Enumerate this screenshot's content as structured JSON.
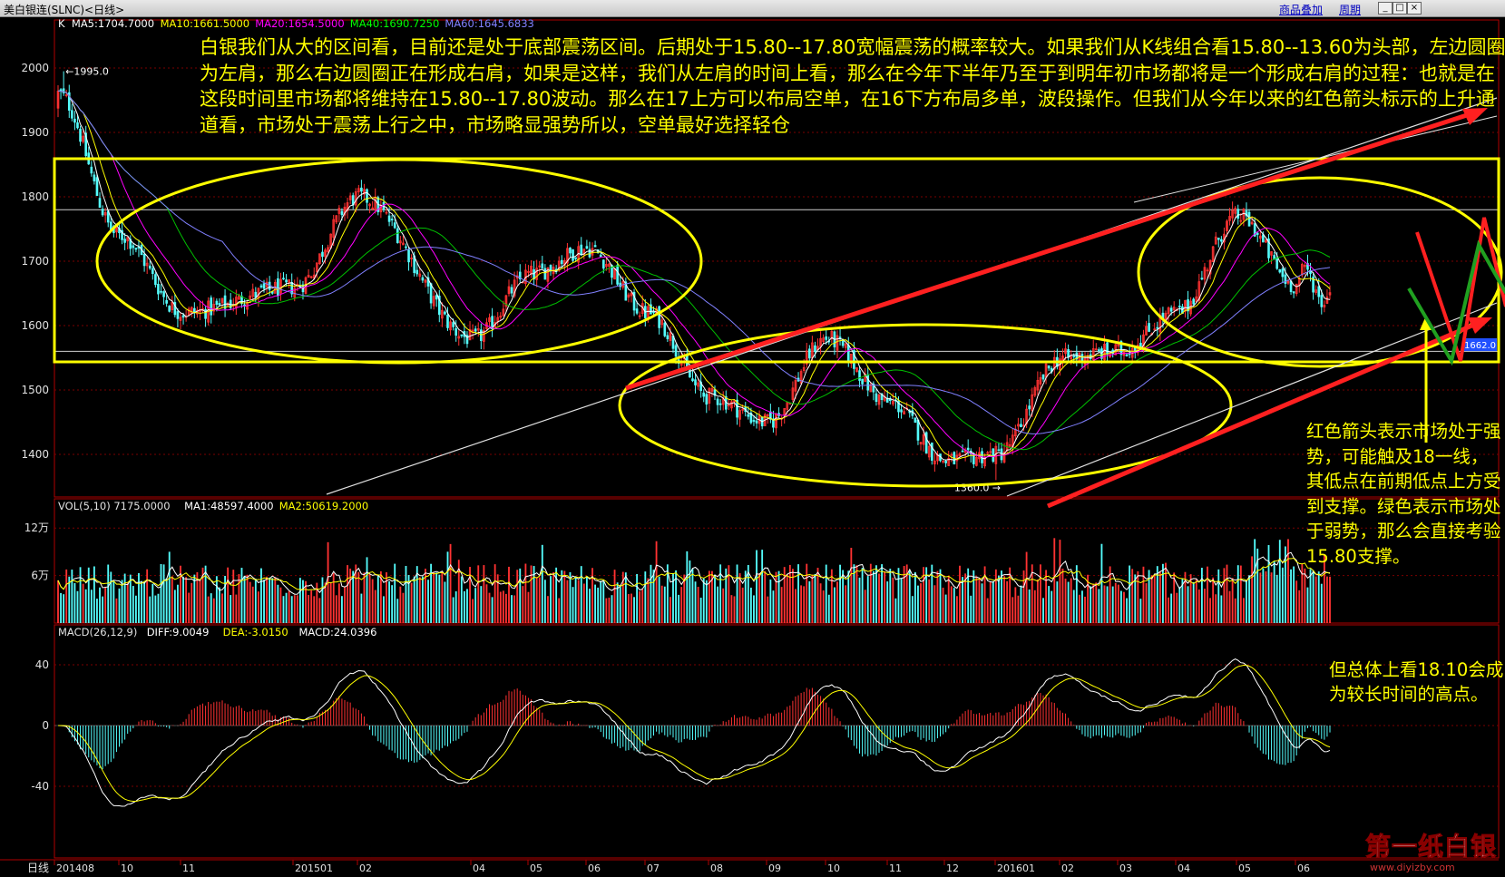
{
  "window": {
    "title": "美白银连(SLNC)<日线>",
    "buttons": [
      "商品叠加",
      "周期"
    ],
    "window_controls": [
      "minimize-icon",
      "maximize-icon",
      "close-icon"
    ]
  },
  "price_panel": {
    "indicator_label": "K",
    "ma_labels": [
      {
        "text": "MA5:1704.7000",
        "color": "#ffffff"
      },
      {
        "text": "MA10:1661.5000",
        "color": "#ffff00"
      },
      {
        "text": "MA20:1654.5000",
        "color": "#ff00ff"
      },
      {
        "text": "MA40:1690.7250",
        "color": "#00ff00"
      },
      {
        "text": "MA60:1645.6833",
        "color": "#8080ff"
      }
    ],
    "y_ticks": [
      "2000",
      "1900",
      "1800",
      "1700",
      "1600",
      "1500",
      "1400"
    ],
    "high_marker": "←1995.0",
    "low_marker": "1360.0 →",
    "last_price": "1662.0"
  },
  "volume_panel": {
    "label": "VOL(5,10) 7175.0000",
    "ma_labels": [
      {
        "text": "MA1:48597.4000",
        "color": "#ffffff"
      },
      {
        "text": "MA2:50619.2000",
        "color": "#ffff00"
      }
    ],
    "y_ticks": [
      "12万",
      "6万"
    ]
  },
  "macd_panel": {
    "label": "MACD(26,12,9)",
    "values": [
      {
        "text": "DIFF:9.0049",
        "color": "#ffffff"
      },
      {
        "text": "DEA:-3.0150",
        "color": "#ffff00"
      },
      {
        "text": "MACD:24.0396",
        "color": "#ffffff"
      }
    ],
    "y_ticks": [
      "40",
      "0",
      "-40"
    ]
  },
  "x_axis": {
    "period": "日线",
    "ticks": [
      "201408",
      "10",
      "11",
      "201501",
      "02",
      "04",
      "05",
      "06",
      "07",
      "08",
      "09",
      "10",
      "11",
      "12",
      "201601",
      "02",
      "03",
      "04",
      "05",
      "06"
    ]
  },
  "annotations": {
    "main": "白银我们从大的区间看，目前还是处于底部震荡区间。后期处于15.80--17.80宽幅震荡的概率较大。如果我们从K线组合看15.80--13.60为头部，左边圆圈为左肩，那么右边圆圈正在形成右肩，如果是这样，我们从左肩的时间上看，那么在今年下半年乃至于到明年初市场都将是一个形成右肩的过程：也就是在这段时间里市场都将维持在15.80--17.80波动。那么在17上方可以布局空单，在16下方布局多单，波段操作。但我们从今年以来的红色箭头标示的上升通道看，市场处于震荡上行之中，市场略显强势所以，空单最好选择轻仓",
    "right1": "红色箭头表示市场处于强势，可能触及18一线，其低点在前期低点上方受到支撑。绿色表示市场处于弱势，那么会直接考验15.80支撑。",
    "right2": "但总体上看18.10会成为较长时间的高点。"
  },
  "watermark": {
    "brand": "第一纸白银",
    "url": "www.diyizby.com"
  },
  "chart_data": {
    "type": "line",
    "title": "美白银连(SLNC)<日线>",
    "x": [
      "201408",
      "10",
      "11",
      "201501",
      "02",
      "04",
      "05",
      "06",
      "07",
      "08",
      "09",
      "10",
      "11",
      "12",
      "201601",
      "02",
      "03",
      "04",
      "05",
      "06"
    ],
    "price_anchors": {
      "x": [
        "201408",
        "10",
        "11",
        "201501",
        "02",
        "04",
        "05",
        "06",
        "07",
        "08",
        "09",
        "10",
        "11",
        "12",
        "201601",
        "02",
        "03",
        "04",
        "05",
        "06"
      ],
      "close": [
        1960,
        1740,
        1620,
        1660,
        1800,
        1580,
        1680,
        1720,
        1620,
        1490,
        1450,
        1580,
        1480,
        1390,
        1400,
        1550,
        1560,
        1620,
        1770,
        1662
      ]
    },
    "price_high": 1995.0,
    "price_low": 1360.0,
    "last_close": 1662.0,
    "price_ylim": [
      1350,
      2040
    ],
    "horizontal_levels": [
      1780,
      1560
    ],
    "volume_ylim": [
      0,
      150000
    ],
    "volume_ma": {
      "MA1": 48597.4,
      "MA2": 50619.2
    },
    "macd_ylim": [
      -60,
      60
    ],
    "macd_last": {
      "DIFF": 9.0049,
      "DEA": -3.015,
      "MACD": 24.0396
    },
    "moving_averages": {
      "MA5": 1704.7,
      "MA10": 1661.5,
      "MA20": 1654.5,
      "MA40": 1690.725,
      "MA60": 1645.6833
    },
    "grid": true,
    "colors": {
      "up": "#ff3232",
      "down": "#54fcfc",
      "annotation": "#ffff00",
      "trend_red": "#ff2020",
      "forecast_green": "#20a020"
    }
  }
}
